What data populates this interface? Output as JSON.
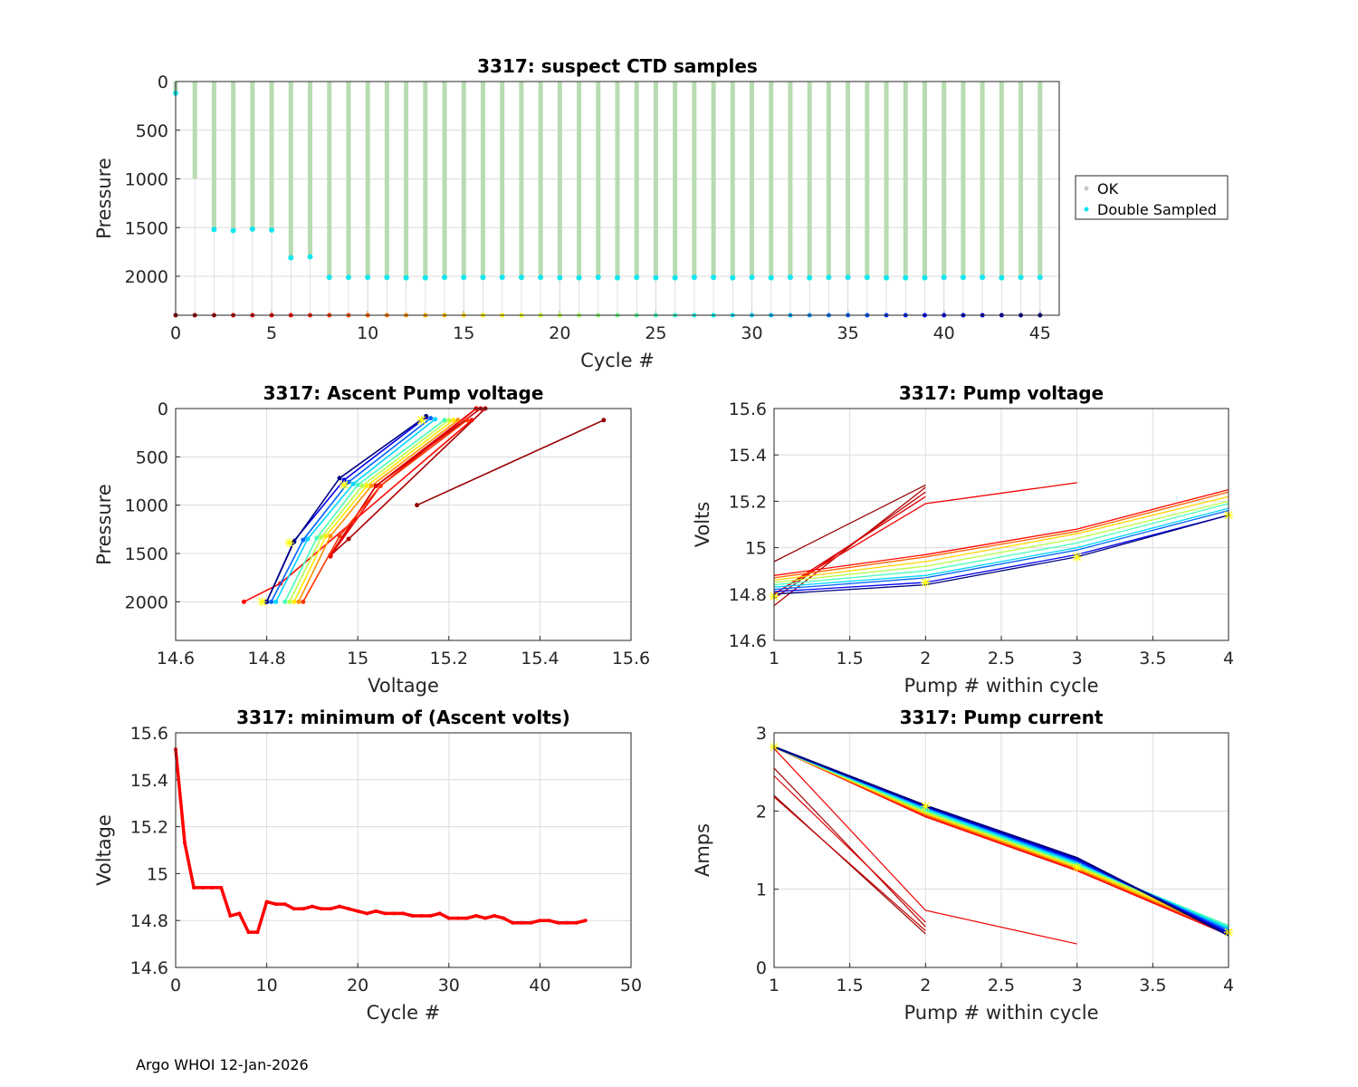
{
  "footer": "Argo WHOI 12-Jan-2026",
  "legend": {
    "ok": "OK",
    "double": "Double Sampled"
  },
  "colors": {
    "ok": "#b7dcb1",
    "double": "#12e6f0",
    "okMarker": "#c8c8c8",
    "redLine": "#ff0000",
    "star": "#ffff00",
    "grid": "#dcdcdc"
  },
  "chart_data": [
    {
      "id": "suspect",
      "type": "scatter",
      "title": "3317: suspect CTD samples",
      "xlabel": "Cycle #",
      "ylabel": "Pressure",
      "xlim": [
        0,
        46
      ],
      "ylim": [
        2400,
        0
      ],
      "reversed_y": true,
      "xticks": [
        0,
        5,
        10,
        15,
        20,
        25,
        30,
        35,
        40,
        45
      ],
      "yticks": [
        0,
        500,
        1000,
        1500,
        2000
      ],
      "cycles": [
        0,
        1,
        2,
        3,
        4,
        5,
        6,
        7,
        8,
        9,
        10,
        11,
        12,
        13,
        14,
        15,
        16,
        17,
        18,
        19,
        20,
        21,
        22,
        23,
        24,
        25,
        26,
        27,
        28,
        29,
        30,
        31,
        32,
        33,
        34,
        35,
        36,
        37,
        38,
        39,
        40,
        41,
        42,
        43,
        44,
        45
      ],
      "max_pressure": [
        120,
        1000,
        1520,
        1530,
        1515,
        1525,
        1810,
        1800,
        2010,
        2010,
        2010,
        2010,
        2015,
        2015,
        2010,
        2010,
        2010,
        2010,
        2010,
        2010,
        2015,
        2015,
        2010,
        2015,
        2010,
        2015,
        2015,
        2010,
        2010,
        2015,
        2010,
        2015,
        2010,
        2015,
        2010,
        2010,
        2010,
        2015,
        2015,
        2015,
        2010,
        2010,
        2010,
        2015,
        2010,
        2010
      ],
      "double_sampled": [
        120,
        null,
        1520,
        1530,
        1515,
        1525,
        1810,
        1800,
        2010,
        2010,
        2010,
        2010,
        2015,
        2015,
        2010,
        2010,
        2010,
        2010,
        2010,
        2010,
        2015,
        2015,
        2010,
        2015,
        2010,
        2015,
        2015,
        2010,
        2010,
        2015,
        2010,
        2015,
        2010,
        2015,
        2010,
        2010,
        2010,
        2015,
        2015,
        2015,
        2010,
        2010,
        2010,
        2015,
        2010,
        2010
      ],
      "cycle_marker_pressure": 2400
    },
    {
      "id": "ascent",
      "type": "line",
      "title": "3317: Ascent Pump voltage",
      "xlabel": "Voltage",
      "ylabel": "Pressure",
      "xlim": [
        14.6,
        15.6
      ],
      "ylim": [
        2400,
        0
      ],
      "reversed_y": true,
      "xticks": [
        14.6,
        14.8,
        15,
        15.2,
        15.4,
        15.6
      ],
      "yticks": [
        0,
        500,
        1000,
        1500,
        2000
      ],
      "series": [
        {
          "cycle": 1,
          "pressure": [
            120,
            1000
          ],
          "voltage": [
            15.54,
            15.13
          ]
        },
        {
          "cycle": 2,
          "pressure": [
            0,
            1350,
            1520
          ],
          "voltage": [
            15.28,
            14.98,
            14.94
          ]
        },
        {
          "cycle": 3,
          "pressure": [
            0,
            800,
            1530
          ],
          "voltage": [
            15.27,
            15.04,
            14.94
          ]
        },
        {
          "cycle": 4,
          "pressure": [
            0,
            800,
            1515
          ],
          "voltage": [
            15.26,
            15.04,
            14.94
          ]
        },
        {
          "cycle": 5,
          "pressure": [
            0,
            800,
            1525
          ],
          "voltage": [
            15.26,
            15.05,
            14.94
          ]
        },
        {
          "cycle": 6,
          "pressure": [
            120,
            1810,
            2000
          ],
          "voltage": [
            15.25,
            14.83,
            14.75
          ]
        },
        {
          "cycle": 8,
          "pressure": [
            120,
            800,
            1320,
            2000
          ],
          "voltage": [
            15.24,
            15.05,
            14.96,
            14.88
          ]
        },
        {
          "cycle": 12,
          "pressure": [
            120,
            800,
            1320,
            2000
          ],
          "voltage": [
            15.22,
            15.03,
            14.94,
            14.87
          ]
        },
        {
          "cycle": 16,
          "pressure": [
            120,
            800,
            1320,
            2000
          ],
          "voltage": [
            15.21,
            15.02,
            14.93,
            14.86
          ]
        },
        {
          "cycle": 20,
          "pressure": [
            120,
            800,
            1330,
            2000
          ],
          "voltage": [
            15.2,
            15.01,
            14.92,
            14.85
          ]
        },
        {
          "cycle": 25,
          "pressure": [
            120,
            790,
            1340,
            2000
          ],
          "voltage": [
            15.19,
            15.0,
            14.91,
            14.84
          ]
        },
        {
          "cycle": 30,
          "pressure": [
            110,
            780,
            1350,
            2000
          ],
          "voltage": [
            15.17,
            14.99,
            14.89,
            14.82
          ]
        },
        {
          "cycle": 35,
          "pressure": [
            100,
            760,
            1360,
            2000
          ],
          "voltage": [
            15.16,
            14.98,
            14.88,
            14.81
          ]
        },
        {
          "cycle": 40,
          "pressure": [
            90,
            740,
            1370,
            2000
          ],
          "voltage": [
            15.15,
            14.97,
            14.86,
            14.8
          ]
        },
        {
          "cycle": 45,
          "pressure": [
            80,
            720,
            1380,
            2000
          ],
          "voltage": [
            15.15,
            14.96,
            14.86,
            14.8
          ]
        }
      ],
      "starred": {
        "pressure": [
          120,
          790,
          1390,
          2000
        ],
        "voltage": [
          15.14,
          14.97,
          14.85,
          14.79
        ]
      }
    },
    {
      "id": "pumpv",
      "type": "line",
      "title": "3317: Pump voltage",
      "xlabel": "Pump # within cycle",
      "ylabel": "Volts",
      "xlim": [
        1,
        4
      ],
      "ylim": [
        14.6,
        15.6
      ],
      "xticks": [
        1,
        1.5,
        2,
        2.5,
        3,
        3.5,
        4
      ],
      "xtick_labels": [
        "1",
        "1.5",
        "2",
        "2.5",
        "3",
        "3.5",
        "4"
      ],
      "yticks": [
        14.6,
        14.8,
        15,
        15.2,
        15.4,
        15.6
      ],
      "ytick_labels": [
        "14.6",
        "14.8",
        "15",
        "15.2",
        "15.4",
        "15.6"
      ],
      "series": [
        {
          "cycle": 1,
          "pump": [
            1,
            2
          ],
          "volts": [
            14.94,
            15.27
          ]
        },
        {
          "cycle": 2,
          "pump": [
            1,
            2
          ],
          "volts": [
            14.75,
            15.26
          ]
        },
        {
          "cycle": 3,
          "pump": [
            1,
            2
          ],
          "volts": [
            14.78,
            15.24
          ]
        },
        {
          "cycle": 4,
          "pump": [
            1,
            2
          ],
          "volts": [
            14.8,
            15.22
          ]
        },
        {
          "cycle": 5,
          "pump": [
            1,
            2,
            3
          ],
          "volts": [
            14.8,
            15.19,
            15.28
          ]
        },
        {
          "cycle": 6,
          "pump": [
            1,
            2,
            3,
            4
          ],
          "volts": [
            14.88,
            14.97,
            15.08,
            15.25
          ]
        },
        {
          "cycle": 10,
          "pump": [
            1,
            2,
            3,
            4
          ],
          "volts": [
            14.87,
            14.96,
            15.07,
            15.24
          ]
        },
        {
          "cycle": 15,
          "pump": [
            1,
            2,
            3,
            4
          ],
          "volts": [
            14.86,
            14.94,
            15.06,
            15.22
          ]
        },
        {
          "cycle": 20,
          "pump": [
            1,
            2,
            3,
            4
          ],
          "volts": [
            14.85,
            14.92,
            15.04,
            15.2
          ]
        },
        {
          "cycle": 25,
          "pump": [
            1,
            2,
            3,
            4
          ],
          "volts": [
            14.84,
            14.9,
            15.02,
            15.19
          ]
        },
        {
          "cycle": 30,
          "pump": [
            1,
            2,
            3,
            4
          ],
          "volts": [
            14.83,
            14.88,
            15.0,
            15.17
          ]
        },
        {
          "cycle": 35,
          "pump": [
            1,
            2,
            3,
            4
          ],
          "volts": [
            14.82,
            14.87,
            14.99,
            15.16
          ]
        },
        {
          "cycle": 40,
          "pump": [
            1,
            2,
            3,
            4
          ],
          "volts": [
            14.81,
            14.85,
            14.97,
            15.14
          ]
        },
        {
          "cycle": 45,
          "pump": [
            1,
            2,
            3,
            4
          ],
          "volts": [
            14.8,
            14.84,
            14.96,
            15.14
          ]
        }
      ],
      "starred": {
        "pump": [
          1,
          2,
          3,
          4
        ],
        "volts": [
          14.79,
          14.85,
          14.96,
          15.14
        ]
      }
    },
    {
      "id": "minv",
      "type": "line",
      "title": "3317: minimum of (Ascent volts)",
      "xlabel": "Cycle #",
      "ylabel": "Voltage",
      "xlim": [
        0,
        50
      ],
      "ylim": [
        14.6,
        15.6
      ],
      "xticks": [
        0,
        10,
        20,
        30,
        40,
        50
      ],
      "yticks": [
        14.6,
        14.8,
        15,
        15.2,
        15.4,
        15.6
      ],
      "ytick_labels": [
        "14.6",
        "14.8",
        "15",
        "15.2",
        "15.4",
        "15.6"
      ],
      "x": [
        0,
        1,
        2,
        3,
        4,
        5,
        6,
        7,
        8,
        9,
        10,
        11,
        12,
        13,
        14,
        15,
        16,
        17,
        18,
        19,
        20,
        21,
        22,
        23,
        24,
        25,
        26,
        27,
        28,
        29,
        30,
        31,
        32,
        33,
        34,
        35,
        36,
        37,
        38,
        39,
        40,
        41,
        42,
        43,
        44,
        45
      ],
      "y": [
        15.53,
        15.13,
        14.94,
        14.94,
        14.94,
        14.94,
        14.82,
        14.83,
        14.75,
        14.75,
        14.88,
        14.87,
        14.87,
        14.85,
        14.85,
        14.86,
        14.85,
        14.85,
        14.86,
        14.85,
        14.84,
        14.83,
        14.84,
        14.83,
        14.83,
        14.83,
        14.82,
        14.82,
        14.82,
        14.83,
        14.81,
        14.81,
        14.81,
        14.82,
        14.81,
        14.82,
        14.81,
        14.79,
        14.79,
        14.79,
        14.8,
        14.8,
        14.79,
        14.79,
        14.79,
        14.8
      ]
    },
    {
      "id": "pumpc",
      "type": "line",
      "title": "3317: Pump current",
      "xlabel": "Pump # within cycle",
      "ylabel": "Amps",
      "xlim": [
        1,
        4
      ],
      "ylim": [
        0,
        3
      ],
      "xticks": [
        1,
        1.5,
        2,
        2.5,
        3,
        3.5,
        4
      ],
      "xtick_labels": [
        "1",
        "1.5",
        "2",
        "2.5",
        "3",
        "3.5",
        "4"
      ],
      "yticks": [
        0,
        1,
        2,
        3
      ],
      "series": [
        {
          "cycle": 1,
          "pump": [
            1,
            2
          ],
          "amps": [
            2.2,
            0.43
          ]
        },
        {
          "cycle": 2,
          "pump": [
            1,
            2
          ],
          "amps": [
            2.55,
            0.52
          ]
        },
        {
          "cycle": 3,
          "pump": [
            1,
            2
          ],
          "amps": [
            2.18,
            0.47
          ]
        },
        {
          "cycle": 4,
          "pump": [
            1,
            2
          ],
          "amps": [
            2.45,
            0.58
          ]
        },
        {
          "cycle": 5,
          "pump": [
            1,
            2,
            3
          ],
          "amps": [
            2.8,
            0.73,
            0.3
          ]
        },
        {
          "cycle": 6,
          "pump": [
            1,
            2,
            3,
            4
          ],
          "amps": [
            2.82,
            1.93,
            1.24,
            0.42
          ]
        },
        {
          "cycle": 10,
          "pump": [
            1,
            2,
            3,
            4
          ],
          "amps": [
            2.82,
            1.95,
            1.26,
            0.44
          ]
        },
        {
          "cycle": 15,
          "pump": [
            1,
            2,
            3,
            4
          ],
          "amps": [
            2.82,
            1.97,
            1.28,
            0.46
          ]
        },
        {
          "cycle": 20,
          "pump": [
            1,
            2,
            3,
            4
          ],
          "amps": [
            2.82,
            1.99,
            1.3,
            0.5
          ]
        },
        {
          "cycle": 25,
          "pump": [
            1,
            2,
            3,
            4
          ],
          "amps": [
            2.82,
            2.01,
            1.32,
            0.53
          ]
        },
        {
          "cycle": 30,
          "pump": [
            1,
            2,
            3,
            4
          ],
          "amps": [
            2.82,
            2.03,
            1.34,
            0.5
          ]
        },
        {
          "cycle": 35,
          "pump": [
            1,
            2,
            3,
            4
          ],
          "amps": [
            2.82,
            2.05,
            1.36,
            0.47
          ]
        },
        {
          "cycle": 40,
          "pump": [
            1,
            2,
            3,
            4
          ],
          "amps": [
            2.82,
            2.06,
            1.38,
            0.44
          ]
        },
        {
          "cycle": 45,
          "pump": [
            1,
            2,
            3,
            4
          ],
          "amps": [
            2.82,
            2.07,
            1.4,
            0.41
          ]
        }
      ],
      "starred": {
        "pump": [
          1,
          2,
          3,
          4
        ],
        "amps": [
          2.82,
          2.06,
          1.28,
          0.45
        ]
      }
    }
  ]
}
